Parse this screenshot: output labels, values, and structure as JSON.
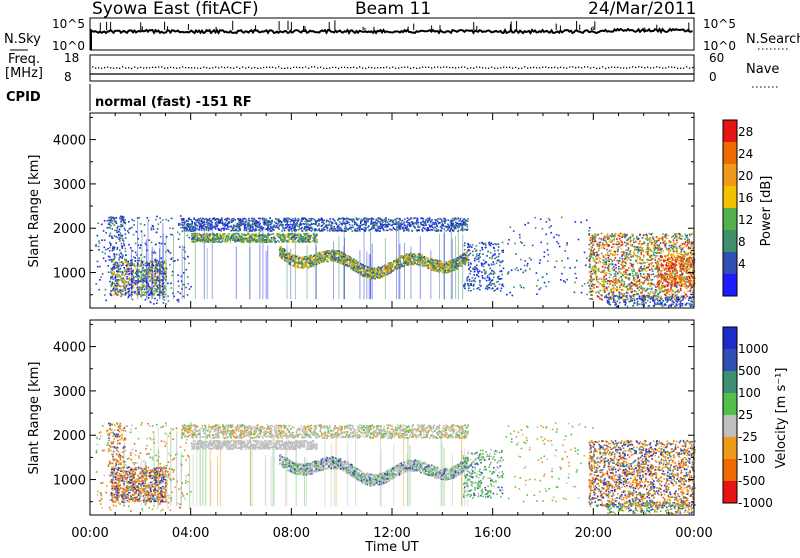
{
  "header": {
    "station": "Syowa East (fitACF)",
    "beam": "Beam 11",
    "date": "24/Mar/2011"
  },
  "top_panels": {
    "nsky_label": "N.Sky",
    "nsky_ticks": [
      "10^5",
      "10^0"
    ],
    "nsearch_label": "N.Search",
    "nsearch_ticks": [
      "10^5",
      "10^0"
    ],
    "freq_label_1": "Freq.",
    "freq_label_2": "[MHz]",
    "freq_ticks": [
      "18",
      "8"
    ],
    "nave_label": "Nave",
    "nave_ticks": [
      "60",
      "0"
    ],
    "cpid_label": "CPID",
    "cpid_text": "normal (fast) -151 RF"
  },
  "colors": {
    "power": [
      "#1c1cff",
      "#2f4fb4",
      "#3f8f6a",
      "#53b04a",
      "#f2c200",
      "#f09a1a",
      "#f06a00",
      "#e51515"
    ],
    "velocity": [
      "#1d2cc8",
      "#2f4fb4",
      "#3d8f72",
      "#53c04a",
      "#bfbfbf",
      "#f09a1a",
      "#f06a00",
      "#e51515"
    ]
  },
  "chart_data": [
    {
      "type": "heatmap",
      "name": "power",
      "ylabel": "Slant Range [km]",
      "y_ticks": [
        1000,
        2000,
        3000,
        4000
      ],
      "ylim": [
        200,
        4600
      ],
      "x_ticks": [
        "00:00",
        "04:00",
        "08:00",
        "12:00",
        "16:00",
        "20:00",
        "00:00"
      ],
      "xlim_hours": [
        0,
        24
      ],
      "colorbar": {
        "label": "Power [dB]",
        "ticks": [
          "28",
          "24",
          "20",
          "16",
          "12",
          "8",
          "4"
        ]
      }
    },
    {
      "type": "heatmap",
      "name": "velocity",
      "ylabel": "Slant Range [km]",
      "y_ticks": [
        1000,
        2000,
        3000,
        4000
      ],
      "ylim": [
        200,
        4600
      ],
      "x_ticks": [
        "00:00",
        "04:00",
        "08:00",
        "12:00",
        "16:00",
        "20:00",
        "00:00"
      ],
      "xlim_hours": [
        0,
        24
      ],
      "xlabel": "Time UT",
      "colorbar": {
        "label": "Velocity [m s⁻¹]",
        "ticks": [
          "1000",
          "500",
          "100",
          "25",
          "-25",
          "-100",
          "-500",
          "-1000"
        ]
      }
    }
  ]
}
